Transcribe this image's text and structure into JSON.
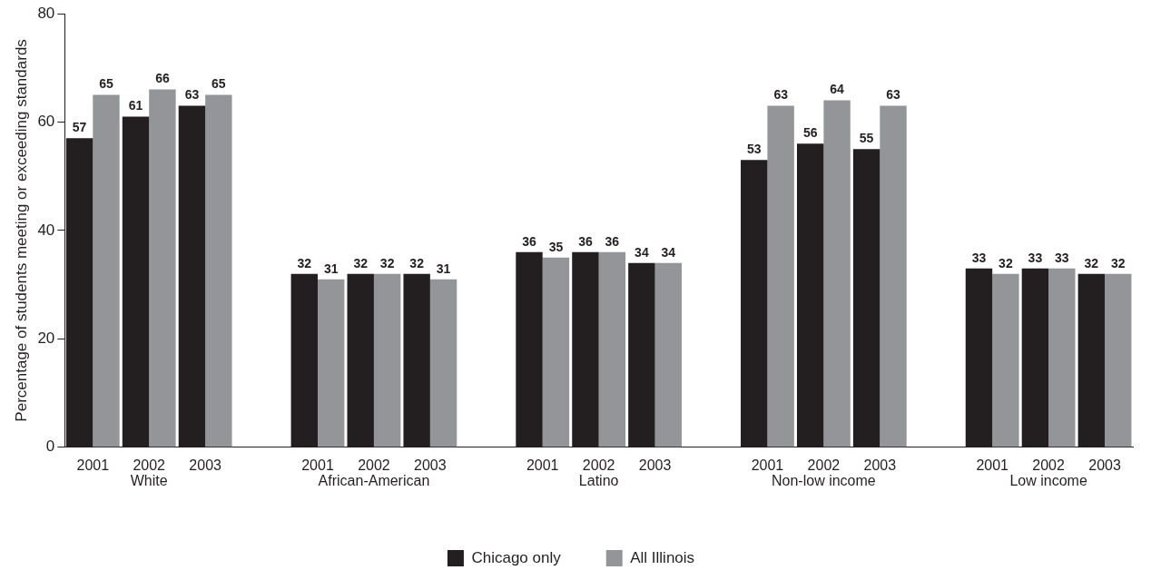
{
  "chart_data": {
    "type": "bar",
    "ylabel": "Percentage of students meeting or exceeding standards",
    "categories": [
      "2001",
      "2002",
      "2003",
      null,
      "2001",
      "2002",
      "2003",
      null,
      "2001",
      "2002",
      "2003",
      null,
      "2001",
      "2002",
      "2003",
      null,
      "2001",
      "2002",
      "2003"
    ],
    "annotations": [
      "White",
      "African-American",
      "Latino",
      "Non-low income",
      "Low income"
    ],
    "series": [
      {
        "name": "Chicago only",
        "color": "#231f20",
        "values": [
          57,
          61,
          63,
          null,
          32,
          32,
          32,
          null,
          36,
          36,
          34,
          null,
          53,
          56,
          55,
          null,
          33,
          33,
          32
        ]
      },
      {
        "name": "All Illinois",
        "color": "#939598",
        "values": [
          65,
          66,
          65,
          null,
          31,
          32,
          31,
          null,
          35,
          36,
          34,
          null,
          63,
          64,
          63,
          null,
          32,
          33,
          32
        ]
      }
    ],
    "ylim": [
      0,
      80
    ],
    "yticks": [
      0,
      20,
      40,
      60,
      80
    ],
    "grid": false,
    "legend": "bottom",
    "data_labels": true
  }
}
